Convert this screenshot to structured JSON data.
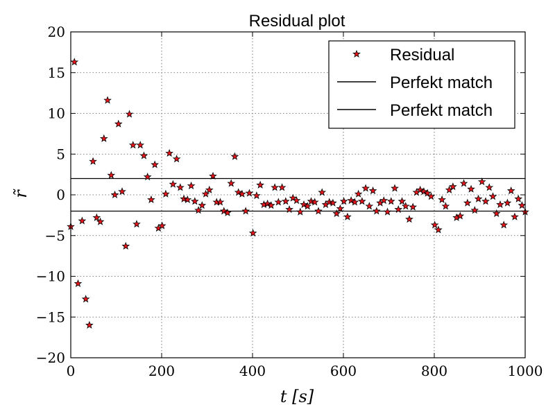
{
  "chart_data": {
    "type": "scatter",
    "title": "Residual plot",
    "xlabel": "t [s]",
    "ylabel": "r̃",
    "xlim": [
      0,
      1000
    ],
    "ylim": [
      -20,
      20
    ],
    "xticks": [
      0,
      200,
      400,
      600,
      800,
      1000
    ],
    "yticks": [
      -20,
      -15,
      -10,
      -5,
      0,
      5,
      10,
      15,
      20
    ],
    "xtick_labels": [
      "0",
      "200",
      "400",
      "600",
      "800",
      "1000"
    ],
    "ytick_labels": [
      "−20",
      "−15",
      "−10",
      "−5",
      "0",
      "5",
      "10",
      "15",
      "20"
    ],
    "grid": true,
    "legend_position": "top-right",
    "colors": {
      "marker_fill": "#e8151b",
      "marker_edge": "#000000",
      "line": "#000000"
    },
    "series": [
      {
        "name": "Residual",
        "marker": "star",
        "points": [
          [
            0,
            -3.9
          ],
          [
            8,
            16.3
          ],
          [
            16,
            -10.9
          ],
          [
            25,
            -3.2
          ],
          [
            33,
            -12.8
          ],
          [
            41,
            -16.0
          ],
          [
            49,
            4.1
          ],
          [
            57,
            -2.8
          ],
          [
            65,
            -3.3
          ],
          [
            73,
            6.9
          ],
          [
            81,
            11.6
          ],
          [
            89,
            2.4
          ],
          [
            97,
            0.0
          ],
          [
            105,
            8.7
          ],
          [
            113,
            0.4
          ],
          [
            121,
            -6.3
          ],
          [
            129,
            9.9
          ],
          [
            137,
            6.1
          ],
          [
            145,
            -3.6
          ],
          [
            153,
            6.1
          ],
          [
            161,
            4.8
          ],
          [
            169,
            2.2
          ],
          [
            177,
            -0.6
          ],
          [
            185,
            3.7
          ],
          [
            193,
            -4.1
          ],
          [
            201,
            -3.8
          ],
          [
            209,
            0.1
          ],
          [
            217,
            5.1
          ],
          [
            225,
            1.3
          ],
          [
            233,
            4.4
          ],
          [
            241,
            0.9
          ],
          [
            249,
            -0.5
          ],
          [
            257,
            -0.6
          ],
          [
            265,
            1.1
          ],
          [
            273,
            -0.8
          ],
          [
            281,
            -1.9
          ],
          [
            289,
            -1.3
          ],
          [
            297,
            0.1
          ],
          [
            305,
            0.6
          ],
          [
            313,
            2.3
          ],
          [
            321,
            -0.9
          ],
          [
            329,
            -0.9
          ],
          [
            337,
            -2.0
          ],
          [
            345,
            -2.2
          ],
          [
            353,
            1.4
          ],
          [
            361,
            4.7
          ],
          [
            369,
            0.3
          ],
          [
            377,
            0.1
          ],
          [
            385,
            -2.0
          ],
          [
            393,
            0.2
          ],
          [
            401,
            -4.7
          ],
          [
            409,
            -0.1
          ],
          [
            417,
            1.2
          ],
          [
            425,
            -1.2
          ],
          [
            433,
            -1.1
          ],
          [
            441,
            -1.3
          ],
          [
            449,
            0.9
          ],
          [
            457,
            -0.9
          ],
          [
            465,
            0.9
          ],
          [
            473,
            -0.8
          ],
          [
            481,
            -1.8
          ],
          [
            489,
            -0.4
          ],
          [
            497,
            -0.7
          ],
          [
            505,
            -2.1
          ],
          [
            513,
            -1.2
          ],
          [
            521,
            -1.4
          ],
          [
            529,
            -0.8
          ],
          [
            537,
            -0.9
          ],
          [
            545,
            -2.0
          ],
          [
            553,
            0.3
          ],
          [
            561,
            -1.2
          ],
          [
            569,
            -0.9
          ],
          [
            577,
            -1.0
          ],
          [
            585,
            -2.3
          ],
          [
            593,
            -1.7
          ],
          [
            601,
            -0.8
          ],
          [
            609,
            -2.7
          ],
          [
            617,
            -0.7
          ],
          [
            625,
            -0.9
          ],
          [
            633,
            0.1
          ],
          [
            641,
            -0.8
          ],
          [
            649,
            0.8
          ],
          [
            657,
            -1.4
          ],
          [
            665,
            0.5
          ],
          [
            673,
            -2.0
          ],
          [
            681,
            -1.0
          ],
          [
            689,
            -0.7
          ],
          [
            697,
            -2.1
          ],
          [
            705,
            -0.8
          ],
          [
            713,
            0.8
          ],
          [
            721,
            -1.8
          ],
          [
            729,
            -0.8
          ],
          [
            737,
            -1.4
          ],
          [
            745,
            -3.0
          ],
          [
            753,
            -1.5
          ],
          [
            761,
            0.3
          ],
          [
            769,
            0.6
          ],
          [
            777,
            0.4
          ],
          [
            785,
            0.2
          ],
          [
            793,
            -0.2
          ],
          [
            801,
            -3.7
          ],
          [
            809,
            -4.3
          ],
          [
            817,
            -0.6
          ],
          [
            825,
            -1.4
          ],
          [
            833,
            0.6
          ],
          [
            841,
            1.0
          ],
          [
            849,
            -2.8
          ],
          [
            857,
            -2.6
          ],
          [
            865,
            1.4
          ],
          [
            873,
            -1.0
          ],
          [
            881,
            0.7
          ],
          [
            889,
            -1.9
          ],
          [
            897,
            -0.5
          ],
          [
            905,
            1.6
          ],
          [
            913,
            -0.8
          ],
          [
            921,
            0.9
          ],
          [
            929,
            -0.2
          ],
          [
            937,
            -2.3
          ],
          [
            945,
            -1.2
          ],
          [
            953,
            -3.7
          ],
          [
            961,
            -1.0
          ],
          [
            969,
            0.5
          ],
          [
            977,
            -2.7
          ],
          [
            985,
            -0.5
          ],
          [
            993,
            -1.3
          ],
          [
            1001,
            -2.1
          ]
        ]
      },
      {
        "name": "Perfekt match",
        "type": "hline",
        "y": 2
      },
      {
        "name": "Perfekt match",
        "type": "hline",
        "y": -2
      }
    ]
  }
}
